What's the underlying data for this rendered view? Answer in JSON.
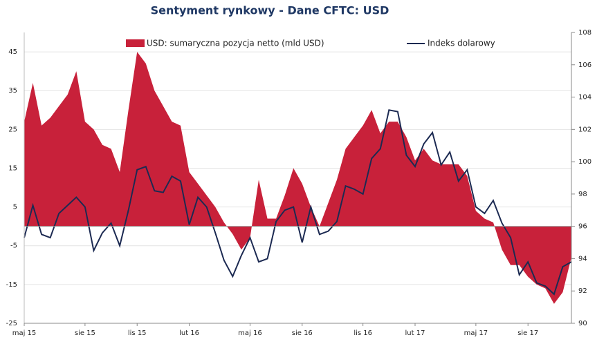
{
  "chart_data": {
    "type": "area",
    "title": "Sentyment rynkowy - Dane CFTC:  USD",
    "categories": [
      "maj 15",
      null,
      null,
      null,
      null,
      null,
      null,
      "sie 15",
      null,
      null,
      null,
      null,
      null,
      "lis 15",
      null,
      null,
      null,
      null,
      null,
      "lut 16",
      null,
      null,
      null,
      null,
      null,
      null,
      "maj 16",
      null,
      null,
      null,
      null,
      null,
      "sie 16",
      null,
      null,
      null,
      null,
      null,
      null,
      "lis 16",
      null,
      null,
      null,
      null,
      null,
      "lut 17",
      null,
      null,
      null,
      null,
      null,
      null,
      "maj 17",
      null,
      null,
      null,
      null,
      null,
      "sie 17",
      null,
      null,
      null,
      null,
      null
    ],
    "series": [
      {
        "name": "USD: sumaryczna pozycja netto (mld USD)",
        "type": "area",
        "color": "#c8213a",
        "values": [
          27,
          37,
          26,
          28,
          31,
          34,
          40,
          27,
          25,
          21,
          20,
          14,
          30,
          45,
          42,
          35,
          31,
          27,
          26,
          14,
          11,
          8,
          5,
          1,
          -2,
          -6,
          -3,
          12,
          2,
          2,
          8,
          15,
          11,
          5,
          0,
          6,
          12,
          20,
          23,
          26,
          30,
          24,
          27,
          27,
          23,
          17,
          20,
          17,
          16,
          16,
          16,
          13,
          4,
          2,
          1,
          -6,
          -10,
          -10,
          -13,
          -15,
          -16,
          -20,
          -17,
          -8
        ]
      },
      {
        "name": "Indeks dolarowy",
        "type": "line",
        "color": "#1c2a52",
        "axis": "y2",
        "values": [
          95.3,
          97.3,
          95.5,
          95.3,
          96.8,
          97.3,
          97.8,
          97.2,
          94.5,
          95.6,
          96.2,
          94.8,
          97.0,
          99.5,
          99.7,
          98.2,
          98.1,
          99.1,
          98.8,
          96.1,
          97.8,
          97.2,
          95.6,
          93.9,
          92.9,
          94.2,
          95.3,
          93.8,
          94.0,
          96.3,
          97.0,
          97.2,
          95.0,
          97.2,
          95.5,
          95.7,
          96.3,
          98.5,
          98.3,
          98.0,
          100.2,
          100.8,
          103.2,
          103.1,
          100.4,
          99.7,
          101.1,
          101.8,
          99.8,
          100.6,
          98.8,
          99.5,
          97.2,
          96.8,
          97.6,
          96.2,
          95.3,
          93.0,
          93.8,
          92.5,
          92.3,
          91.8,
          93.5,
          93.8
        ]
      }
    ],
    "ylim": [
      -25,
      50
    ],
    "yticks": [
      -25,
      -15,
      -5,
      5,
      15,
      25,
      35,
      45
    ],
    "y2lim": [
      90,
      108
    ],
    "y2ticks": [
      90,
      92,
      94,
      96,
      98,
      100,
      102,
      104,
      106,
      108
    ],
    "grid": true
  }
}
